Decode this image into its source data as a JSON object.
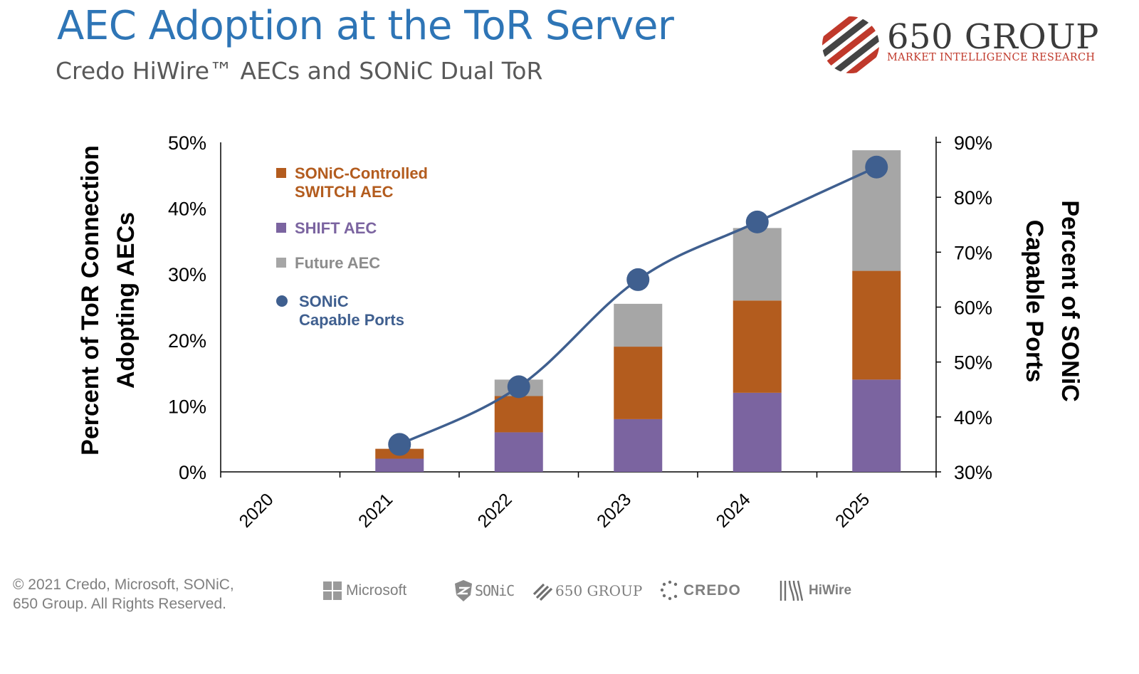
{
  "header": {
    "title": "AEC Adoption at the ToR Server",
    "subtitle": "Credo HiWire™ AECs and SONiC Dual ToR"
  },
  "logo": {
    "name": "650 GROUP",
    "tagline": "MARKET INTELLIGENCE RESEARCH"
  },
  "footer": {
    "copyright_line1": "© 2021 Credo, Microsoft, SONiC,",
    "copyright_line2": "650 Group.  All Rights Reserved.",
    "partners": [
      "Microsoft",
      "SONiC",
      "650 GROUP",
      "CREDO",
      "HiWire"
    ]
  },
  "colors": {
    "title": "#2e75b6",
    "switch_aec": "#b35c1e",
    "shift_aec": "#7b64a0",
    "future_aec": "#a6a6a6",
    "sonic_line": "#3f5f8f"
  },
  "chart_data": {
    "type": "bar",
    "stacked": true,
    "categories": [
      "2020",
      "2021",
      "2022",
      "2023",
      "2024",
      "2025"
    ],
    "series": [
      {
        "name": "SHIFT AEC",
        "kind": "bar",
        "axis": "left",
        "values": [
          0,
          2,
          6,
          8,
          12,
          14
        ]
      },
      {
        "name": "SONiC-Controlled SWITCH AEC",
        "kind": "bar",
        "axis": "left",
        "values": [
          0,
          1.5,
          5.5,
          11,
          14,
          16.5
        ]
      },
      {
        "name": "Future AEC",
        "kind": "bar",
        "axis": "left",
        "values": [
          0,
          0,
          2.5,
          6.5,
          11,
          18.3
        ]
      },
      {
        "name": "SONiC Capable Ports",
        "kind": "line",
        "axis": "right",
        "values": [
          null,
          35,
          45.5,
          65,
          75.5,
          85.5
        ]
      }
    ],
    "legend": [
      {
        "key": "switch",
        "label_line1": "SONiC-Controlled",
        "label_line2": "SWITCH AEC"
      },
      {
        "key": "shift",
        "label_line1": "SHIFT AEC",
        "label_line2": ""
      },
      {
        "key": "future",
        "label_line1": "Future AEC",
        "label_line2": ""
      },
      {
        "key": "sonic",
        "label_line1": "SONiC",
        "label_line2": "Capable Ports"
      }
    ],
    "legend_position": "top-left",
    "ylabel_line1": "Percent of ToR Connection",
    "ylabel_line2": "Adopting AECs",
    "y2label_line1": "Percent of SONiC",
    "y2label_line2": "Capable Ports",
    "ylim": [
      0,
      50
    ],
    "y2lim": [
      30,
      90
    ],
    "yticks": [
      "0%",
      "10%",
      "20%",
      "30%",
      "40%",
      "50%"
    ],
    "y2ticks": [
      "30%",
      "40%",
      "50%",
      "60%",
      "70%",
      "80%",
      "90%"
    ],
    "grid": false
  }
}
